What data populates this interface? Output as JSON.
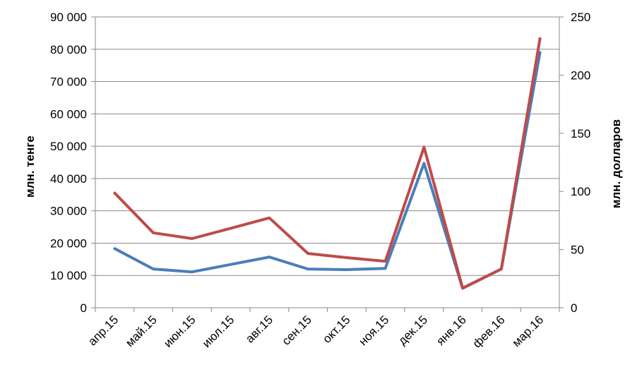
{
  "chart_data": {
    "type": "line",
    "categories": [
      "апр.15",
      "май.15",
      "июн.15",
      "июл.15",
      "авг.15",
      "сен.15",
      "окт.15",
      "ноя.15",
      "дек.15",
      "янв.16",
      "фев.16",
      "мар.16"
    ],
    "ylabel": "млн. тенге",
    "y2label": "млн. долларов",
    "ylim": [
      0,
      90000
    ],
    "y2lim": [
      0,
      250
    ],
    "yticks": [
      "0",
      "10 000",
      "20 000",
      "30 000",
      "40 000",
      "50 000",
      "60 000",
      "70 000",
      "80 000",
      "90 000"
    ],
    "y2ticks": [
      "0",
      "50",
      "100",
      "150",
      "200",
      "250"
    ],
    "grid": true,
    "legend": "none",
    "series": [
      {
        "axis": "left",
        "color": "#4a7ebb",
        "values": [
          18300,
          12000,
          11100,
          13400,
          15700,
          12000,
          11800,
          12200,
          44700,
          6000,
          12000,
          79000
        ]
      },
      {
        "axis": "left",
        "color": "#be4b48",
        "values": [
          35500,
          23200,
          21400,
          24600,
          27800,
          16800,
          15500,
          14400,
          49700,
          6100,
          12000,
          83300
        ]
      }
    ]
  }
}
